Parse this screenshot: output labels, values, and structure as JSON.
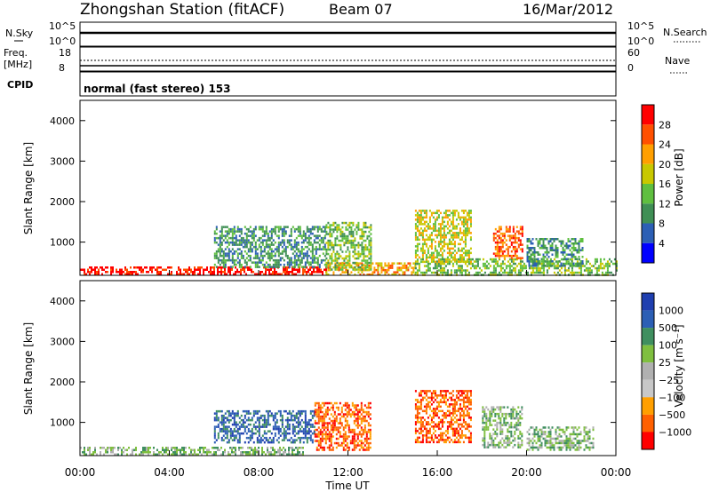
{
  "header": {
    "station": "Zhongshan Station (fitACF)",
    "beam": "Beam 07",
    "date": "16/Mar/2012"
  },
  "top_panel": {
    "left_label_1": "N.Sky",
    "left_ticks_1": [
      "10^5",
      "10^0"
    ],
    "left_label_2a": "Freq.",
    "left_label_2b": "[MHz]",
    "left_ticks_2": [
      "18",
      "8"
    ],
    "cpid_label": "CPID",
    "right_label_1": "N.Search",
    "right_ticks_1": [
      "10^5",
      "10^0"
    ],
    "right_label_2": "Nave",
    "right_ticks_2": [
      "60",
      "0"
    ],
    "cpid_text": "normal (fast stereo) 153"
  },
  "colors": {
    "power": [
      "#0000ff",
      "#2c5fb5",
      "#3f8f55",
      "#5fbf3f",
      "#c8c800",
      "#ff9f00",
      "#ff5000",
      "#ff0000"
    ],
    "velocity": [
      "#ff0000",
      "#ff6000",
      "#ff9f00",
      "#c8c8c8",
      "#b0b0b0",
      "#7fbf3f",
      "#3f8f5f",
      "#2c5fb5",
      "#1f3fb0"
    ]
  },
  "chart_data": [
    {
      "type": "heatmap",
      "name": "power",
      "ylabel": "Slant Range [km]",
      "xlabel": "",
      "ylim": [
        180,
        4500
      ],
      "yticks": [
        "1000",
        "2000",
        "3000",
        "4000"
      ],
      "ytick_values": [
        1000,
        2000,
        3000,
        4000
      ],
      "colorbar": {
        "label": "Power [dB]",
        "range": [
          0,
          32
        ],
        "tick_labels": [
          "4",
          "8",
          "12",
          "16",
          "20",
          "24",
          "28"
        ]
      },
      "approx_regions": [
        {
          "t0": 0.0,
          "t1": 11.0,
          "r0": 200,
          "r1": 400,
          "level": 28
        },
        {
          "t0": 11.0,
          "t1": 15.0,
          "r0": 200,
          "r1": 500,
          "level": 20
        },
        {
          "t0": 15.0,
          "t1": 24.0,
          "r0": 200,
          "r1": 600,
          "level": 14
        },
        {
          "t0": 6.0,
          "t1": 11.0,
          "r0": 400,
          "r1": 1400,
          "level": 8
        },
        {
          "t0": 11.0,
          "t1": 13.0,
          "r0": 300,
          "r1": 1500,
          "level": 14
        },
        {
          "t0": 15.0,
          "t1": 17.5,
          "r0": 500,
          "r1": 1800,
          "level": 16
        },
        {
          "t0": 18.5,
          "t1": 19.8,
          "r0": 600,
          "r1": 1400,
          "level": 26
        },
        {
          "t0": 20.0,
          "t1": 22.5,
          "r0": 400,
          "r1": 1100,
          "level": 8
        }
      ]
    },
    {
      "type": "heatmap",
      "name": "velocity",
      "ylabel": "Slant Range [km]",
      "xlabel": "Time UT",
      "ylim": [
        180,
        4500
      ],
      "yticks": [
        "1000",
        "2000",
        "3000",
        "4000"
      ],
      "ytick_values": [
        1000,
        2000,
        3000,
        4000
      ],
      "xticks": [
        "00:00",
        "04:00",
        "08:00",
        "12:00",
        "16:00",
        "20:00",
        "00:00"
      ],
      "xlim": [
        0,
        24
      ],
      "colorbar": {
        "label": "Velocity [m s⁻¹]",
        "tick_labels": [
          "1000",
          "500",
          "100",
          "25",
          "−25",
          "−100",
          "−500",
          "−1000"
        ]
      },
      "approx_regions": [
        {
          "t0": 0.0,
          "t1": 10.0,
          "r0": 200,
          "r1": 400,
          "level": 100
        },
        {
          "t0": 6.0,
          "t1": 10.5,
          "r0": 500,
          "r1": 1300,
          "level": 800
        },
        {
          "t0": 10.5,
          "t1": 13.0,
          "r0": 300,
          "r1": 1500,
          "level": -500
        },
        {
          "t0": 15.0,
          "t1": 17.5,
          "r0": 500,
          "r1": 1800,
          "level": -300
        },
        {
          "t0": 18.0,
          "t1": 19.8,
          "r0": 400,
          "r1": 1400,
          "level": 200
        },
        {
          "t0": 20.0,
          "t1": 23.0,
          "r0": 300,
          "r1": 900,
          "level": 200
        }
      ]
    }
  ]
}
